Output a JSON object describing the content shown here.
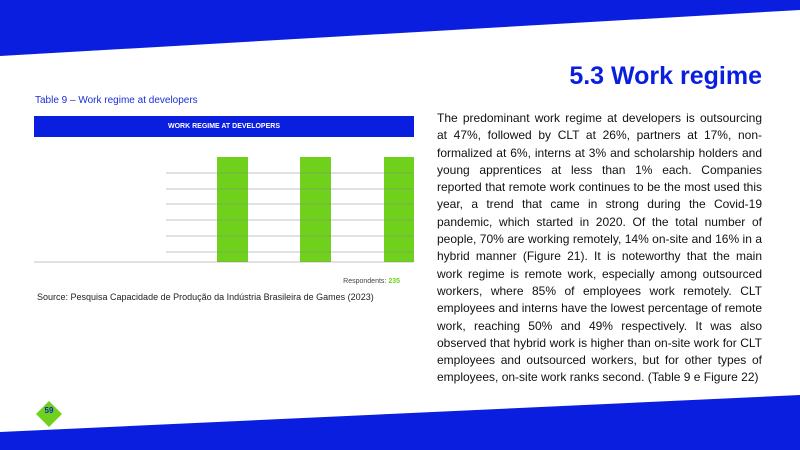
{
  "header": {
    "title": "5.3 Work regime"
  },
  "table": {
    "caption": "Table 9 – Work regime at developers",
    "heading": "WORK REGIME AT DEVELOPERS",
    "respondents_label": "Respondents:",
    "respondents_value": 235
  },
  "source": "Source: Pesquisa Capacidade de Produção da Indústria Brasileira de Games (2023)",
  "body": {
    "paragraph": "The predominant work regime at developers is outsourcing at 47%, followed by CLT at 26%, partners at 17%, non-formalized at 6%, interns at 3% and scholarship holders and young apprentices at less than 1% each. Companies reported that remote work continues to be the most used this year, a trend that came in strong during the Covid-19 pandemic, which started in 2020. Of the total number of people, 70% are working remotely, 14% on-site and 16% in a hybrid manner (Figure 21). It is noteworthy that the main work regime is remote work, especially among outsourced workers, where 85% of employees work remotely. CLT employees and interns have the lowest percentage of remote work, reaching 50% and 49% respectively. It was also observed that hybrid work is higher than on-site work for CLT employees and outsourced workers, but for other types of employees, on-site work ranks second. (Table 9 e Figure 22)"
  },
  "footer": {
    "page_number": "59"
  }
}
